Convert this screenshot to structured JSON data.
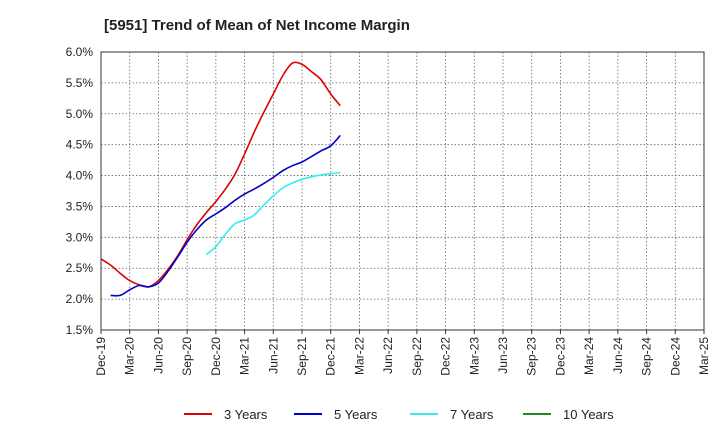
{
  "chart_data": {
    "type": "line",
    "title": "[5951]  Trend of Mean of Net Income Margin",
    "xlabel": "",
    "ylabel": "",
    "x_ticks": [
      "Dec-19",
      "Mar-20",
      "Jun-20",
      "Sep-20",
      "Dec-20",
      "Mar-21",
      "Jun-21",
      "Sep-21",
      "Dec-21",
      "Mar-22",
      "Jun-22",
      "Sep-22",
      "Dec-22",
      "Mar-23",
      "Jun-23",
      "Sep-23",
      "Dec-23",
      "Mar-24",
      "Jun-24",
      "Sep-24",
      "Dec-24",
      "Mar-25"
    ],
    "y_ticks": [
      "1.5%",
      "2.0%",
      "2.5%",
      "3.0%",
      "3.5%",
      "4.0%",
      "4.5%",
      "5.0%",
      "5.5%",
      "6.0%"
    ],
    "ylim": [
      1.5,
      6.0
    ],
    "grid": true,
    "legend_position": "bottom",
    "series": [
      {
        "name": "3 Years",
        "color": "#dd0000",
        "values": [
          2.65,
          2.55,
          2.42,
          2.3,
          2.23,
          2.2,
          2.3,
          2.48,
          2.7,
          2.96,
          3.2,
          3.4,
          3.58,
          3.78,
          4.02,
          4.35,
          4.7,
          5.02,
          5.32,
          5.62,
          5.82,
          5.8,
          5.68,
          5.55,
          5.32,
          5.13
        ]
      },
      {
        "name": "5 Years",
        "color": "#0000cc",
        "values": [
          null,
          2.06,
          2.06,
          2.15,
          2.22,
          2.2,
          2.26,
          2.45,
          2.68,
          2.92,
          3.12,
          3.28,
          3.38,
          3.48,
          3.6,
          3.7,
          3.78,
          3.87,
          3.97,
          4.08,
          4.16,
          4.22,
          4.31,
          4.4,
          4.48,
          4.65
        ]
      },
      {
        "name": "7 Years",
        "color": "#33eeee",
        "values": [
          null,
          null,
          null,
          null,
          null,
          null,
          null,
          null,
          null,
          null,
          null,
          2.72,
          2.85,
          3.05,
          3.22,
          3.28,
          3.36,
          3.52,
          3.67,
          3.8,
          3.88,
          3.94,
          3.98,
          4.01,
          4.03,
          4.05
        ]
      },
      {
        "name": "10 Years",
        "color": "#228822",
        "values": []
      }
    ]
  }
}
